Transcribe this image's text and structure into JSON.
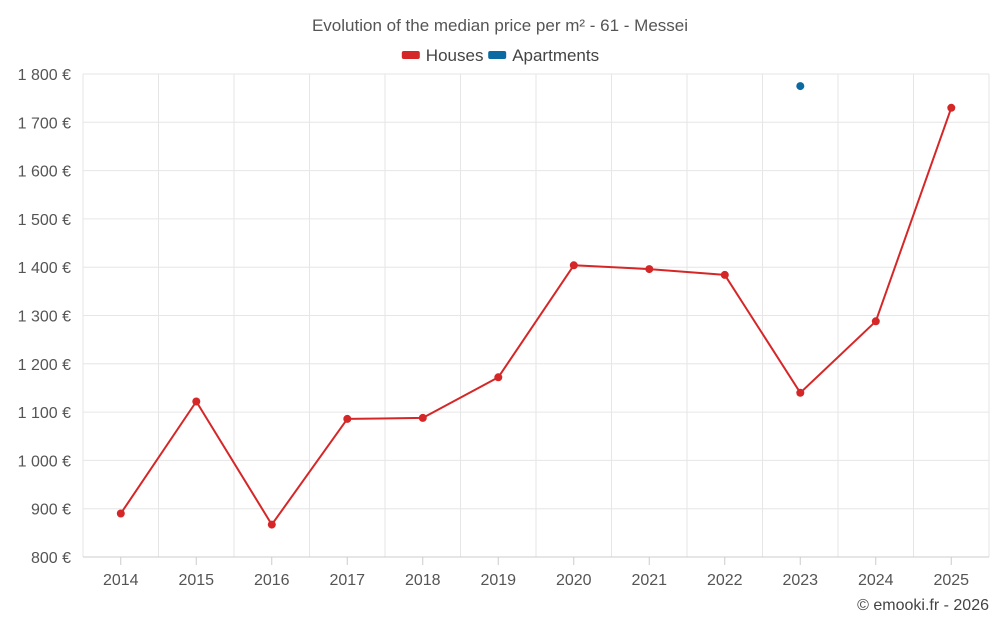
{
  "chart_data": {
    "type": "line",
    "title": "Evolution of the median price per m² - 61 - Messei",
    "categories": [
      "2014",
      "2015",
      "2016",
      "2017",
      "2018",
      "2019",
      "2020",
      "2021",
      "2022",
      "2023",
      "2024",
      "2025"
    ],
    "series": [
      {
        "name": "Houses",
        "color": "#d62728",
        "values": [
          890,
          1122,
          867,
          1086,
          1088,
          1172,
          1404,
          1396,
          1384,
          1140,
          1288,
          1730
        ]
      },
      {
        "name": "Apartments",
        "color": "#0a6aa1",
        "values": [
          null,
          null,
          null,
          null,
          null,
          null,
          null,
          null,
          null,
          1775,
          null,
          null
        ]
      }
    ],
    "ylim": [
      800,
      1800
    ],
    "yticks": [
      800,
      900,
      1000,
      1100,
      1200,
      1300,
      1400,
      1500,
      1600,
      1700,
      1800
    ],
    "ytick_labels": [
      "800 €",
      "900 €",
      "1 000 €",
      "1 100 €",
      "1 200 €",
      "1 300 €",
      "1 400 €",
      "1 500 €",
      "1 600 €",
      "1 700 €",
      "1 800 €"
    ],
    "xlabel": "",
    "ylabel": "",
    "legend_position": "top-center",
    "grid": true
  },
  "credit": "© emooki.fr - 2026"
}
